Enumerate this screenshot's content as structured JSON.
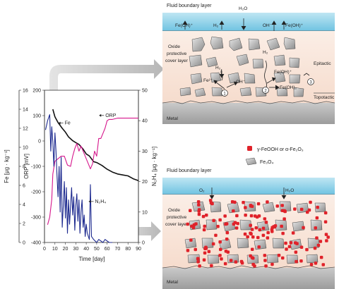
{
  "chart_data": {
    "type": "line",
    "xlabel": "Time [day]",
    "xlim": [
      0,
      90
    ],
    "x_ticks": [
      0,
      10,
      20,
      30,
      40,
      50,
      60,
      70,
      80,
      90
    ],
    "axes": {
      "fe": {
        "label": "Fe [μg · kg⁻¹]",
        "lim": [
          0,
          16
        ],
        "ticks": [
          0,
          2,
          4,
          6,
          8,
          10,
          12,
          14,
          16
        ]
      },
      "orp": {
        "label": "ORP [mV]",
        "lim": [
          -400,
          200
        ],
        "ticks": [
          -400,
          -300,
          -200,
          -100,
          0,
          100,
          200
        ]
      },
      "n2h4": {
        "label": "N₂H₄ [μg · kg⁻¹]",
        "lim": [
          0,
          50
        ],
        "ticks": [
          0,
          10,
          20,
          30,
          40,
          50
        ]
      }
    },
    "series": [
      {
        "name": "Fe",
        "axis": "fe",
        "color": "#111111",
        "points": [
          [
            8,
            14
          ],
          [
            10,
            13.2
          ],
          [
            13,
            12.6
          ],
          [
            17,
            12.0
          ],
          [
            20,
            11.6
          ],
          [
            23,
            11.1
          ],
          [
            27,
            10.7
          ],
          [
            30,
            10.5
          ],
          [
            33,
            10.3
          ],
          [
            37,
            9.8
          ],
          [
            40,
            9.3
          ],
          [
            43,
            9.1
          ],
          [
            47,
            8.5
          ],
          [
            50,
            8.4
          ],
          [
            55,
            8.1
          ],
          [
            60,
            7.7
          ],
          [
            65,
            7.4
          ],
          [
            70,
            7.2
          ],
          [
            75,
            7.1
          ],
          [
            80,
            7.0
          ],
          [
            85,
            6.7
          ],
          [
            90,
            6.5
          ]
        ]
      },
      {
        "name": "ORP",
        "axis": "orp",
        "color": "#d6168c",
        "points": [
          [
            3,
            -330
          ],
          [
            5,
            -300
          ],
          [
            7,
            -230
          ],
          [
            8,
            -130
          ],
          [
            10,
            -80
          ],
          [
            13,
            -70
          ],
          [
            16,
            -60
          ],
          [
            19,
            -60
          ],
          [
            22,
            -95
          ],
          [
            25,
            -100
          ],
          [
            27,
            -60
          ],
          [
            29,
            -30
          ],
          [
            31,
            -10
          ],
          [
            33,
            -40
          ],
          [
            35,
            -20
          ],
          [
            37,
            -40
          ],
          [
            40,
            -70
          ],
          [
            42,
            -90
          ],
          [
            44,
            -110
          ],
          [
            46,
            -90
          ],
          [
            48,
            -40
          ],
          [
            50,
            -60
          ],
          [
            52,
            10
          ],
          [
            54,
            10
          ],
          [
            56,
            30
          ],
          [
            58,
            50
          ],
          [
            60,
            80
          ],
          [
            62,
            85
          ],
          [
            65,
            85
          ],
          [
            70,
            90
          ],
          [
            75,
            90
          ],
          [
            80,
            90
          ],
          [
            85,
            90
          ],
          [
            90,
            90
          ]
        ]
      },
      {
        "name": "N₂H₄",
        "axis": "n2h4",
        "color": "#1d2a8f",
        "points": [
          [
            1,
            37
          ],
          [
            3,
            40
          ],
          [
            5,
            42
          ],
          [
            6,
            30
          ],
          [
            7,
            38
          ],
          [
            8,
            33
          ],
          [
            9,
            25
          ],
          [
            10,
            36
          ],
          [
            11,
            30
          ],
          [
            12,
            22
          ],
          [
            13,
            15
          ],
          [
            14,
            25
          ],
          [
            15,
            10
          ],
          [
            16,
            28
          ],
          [
            17,
            5
          ],
          [
            18,
            12
          ],
          [
            19,
            20
          ],
          [
            20,
            8
          ],
          [
            21,
            18
          ],
          [
            22,
            3
          ],
          [
            23,
            14
          ],
          [
            24,
            6
          ],
          [
            25,
            12
          ],
          [
            26,
            18
          ],
          [
            27,
            9
          ],
          [
            28,
            15
          ],
          [
            29,
            4
          ],
          [
            30,
            12
          ],
          [
            31,
            16
          ],
          [
            32,
            7
          ],
          [
            33,
            14
          ],
          [
            34,
            3
          ],
          [
            35,
            10
          ],
          [
            36,
            14
          ],
          [
            37,
            5
          ],
          [
            38,
            9
          ],
          [
            39,
            2
          ],
          [
            40,
            6
          ],
          [
            41,
            3
          ],
          [
            43,
            1
          ],
          [
            44,
            19
          ],
          [
            45,
            2
          ],
          [
            47,
            1
          ],
          [
            50,
            0
          ],
          [
            52,
            1
          ],
          [
            56,
            0
          ],
          [
            58,
            1
          ],
          [
            62,
            0
          ],
          [
            65,
            0
          ]
        ]
      }
    ],
    "annotations": [
      {
        "text": "Fe",
        "x": 18,
        "y_fe": 12.4,
        "arrow": "left"
      },
      {
        "text": "ORP",
        "x": 57,
        "y_orp": 95,
        "arrow": "left"
      },
      {
        "text": "N₂H₄",
        "x": 47,
        "y_n2h4": 13,
        "arrow": "left"
      }
    ]
  },
  "top_diagram": {
    "fluid_label": "Fluid boundary layer",
    "oxide_label_1": "Oxide",
    "oxide_label_2": "protective",
    "oxide_label_3": "cover layer",
    "metal_label": "Metal",
    "epitactic": "Epitactic",
    "topotactic": "Topotactic",
    "species": {
      "feoh_left": "Fe(OH)⁺",
      "h2_top": "H₂",
      "h2o_top": "H₂O",
      "oh_top": "OH⁻",
      "feoh_right": "Fe(OH)⁺",
      "h2_mid_left": "H₂",
      "fe2": "Fe²⁺",
      "oh_mid": "OH⁻",
      "h2_mid_right": "H₂",
      "feoh2": "Fe(OH)₂",
      "feoh_mid": "Fe(OH)⁺",
      "step1": "1",
      "step2": "2",
      "step3": "3"
    }
  },
  "legend": {
    "red_label": "γ-FeOOH or α-Fe₂O₃",
    "grey_label": "Fe₃O₄"
  },
  "bottom_diagram": {
    "fluid_label": "Fluid boundary layer",
    "o2": "O₂",
    "h2o": "H₂O",
    "oxide_label_1": "Oxide",
    "oxide_label_2": "protective",
    "oxide_label_3": "cover layer",
    "metal_label": "Metal"
  }
}
